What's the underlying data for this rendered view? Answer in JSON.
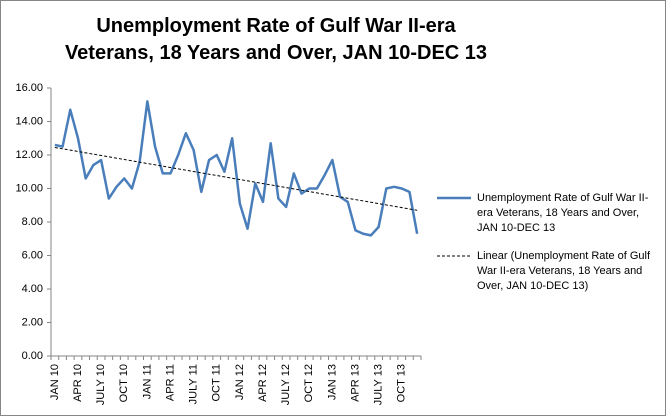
{
  "chart_data": {
    "type": "line",
    "title": "Unemployment Rate of Gulf War II-era Veterans, 18 Years and Over, JAN 10-DEC 13",
    "categories": [
      "JAN 10",
      null,
      null,
      "APR 10",
      null,
      null,
      "JULY 10",
      null,
      null,
      "OCT 10",
      null,
      null,
      "JAN 11",
      null,
      null,
      "APR 11",
      null,
      null,
      "JULY 11",
      null,
      null,
      "OCT 11",
      null,
      null,
      "JAN 12",
      null,
      null,
      "APR 12",
      null,
      null,
      "JULY 12",
      null,
      null,
      "OCT 12",
      null,
      null,
      "JAN 13",
      null,
      null,
      "APR 13",
      null,
      null,
      "JULY 13",
      null,
      null,
      "OCT 13",
      null,
      null
    ],
    "series": [
      {
        "name": "Unemployment Rate of Gulf War II-era Veterans, 18 Years and Over, JAN 10-DEC 13",
        "color": "#4a7ebb",
        "values": [
          12.6,
          12.5,
          14.7,
          13.0,
          10.6,
          11.4,
          11.7,
          9.4,
          10.1,
          10.6,
          10.0,
          11.6,
          15.2,
          12.5,
          10.9,
          10.9,
          12.0,
          13.3,
          12.3,
          9.8,
          11.7,
          12.0,
          11.0,
          13.0,
          9.1,
          7.6,
          10.3,
          9.2,
          12.7,
          9.4,
          8.9,
          10.9,
          9.7,
          10.0,
          10.0,
          10.8,
          11.7,
          9.5,
          9.2,
          7.5,
          7.3,
          7.2,
          7.7,
          10.0,
          10.1,
          10.0,
          9.8,
          7.3
        ]
      }
    ],
    "trendline": {
      "name": "Linear (Unemployment Rate of Gulf War II-era Veterans, 18 Years and Over, JAN 10-DEC 13)",
      "color": "#000000",
      "values": [
        12.45,
        8.7
      ]
    },
    "ylim": [
      0,
      16
    ],
    "yticks": [
      {
        "value": 0,
        "label": "0.00"
      },
      {
        "value": 2,
        "label": "2.00"
      },
      {
        "value": 4,
        "label": "4.00"
      },
      {
        "value": 6,
        "label": "6.00"
      },
      {
        "value": 8,
        "label": "8.00"
      },
      {
        "value": 10,
        "label": "10.00"
      },
      {
        "value": 12,
        "label": "12.00"
      },
      {
        "value": 14,
        "label": "14.00"
      },
      {
        "value": 16,
        "label": "16.00"
      }
    ],
    "grid": false
  }
}
